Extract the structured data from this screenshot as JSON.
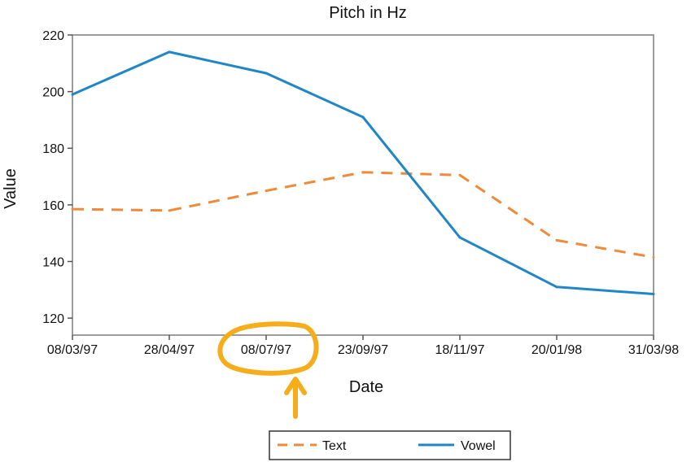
{
  "chart_data": {
    "type": "line",
    "title": "Pitch in Hz",
    "xlabel": "Date",
    "ylabel": "Value",
    "categories": [
      "08/03/97",
      "28/04/97",
      "08/07/97",
      "23/09/97",
      "18/11/97",
      "20/01/98",
      "31/03/98"
    ],
    "ylim": [
      114,
      220
    ],
    "yticks": [
      120,
      140,
      160,
      180,
      200,
      220
    ],
    "grid": false,
    "legend_position": "bottom",
    "series": [
      {
        "name": "Text",
        "values": [
          158.5,
          158,
          165,
          171.5,
          170.5,
          147.5,
          141.5
        ],
        "color": "#f08a3a",
        "style": "dashed"
      },
      {
        "name": "Vowel",
        "values": [
          199,
          214,
          206.5,
          191,
          148.5,
          131,
          128.5
        ],
        "color": "#1f86c8",
        "style": "solid"
      }
    ],
    "annotation": {
      "target_category": "08/07/97",
      "shape": "circle-with-arrow",
      "color": "#f6ad1c"
    }
  }
}
